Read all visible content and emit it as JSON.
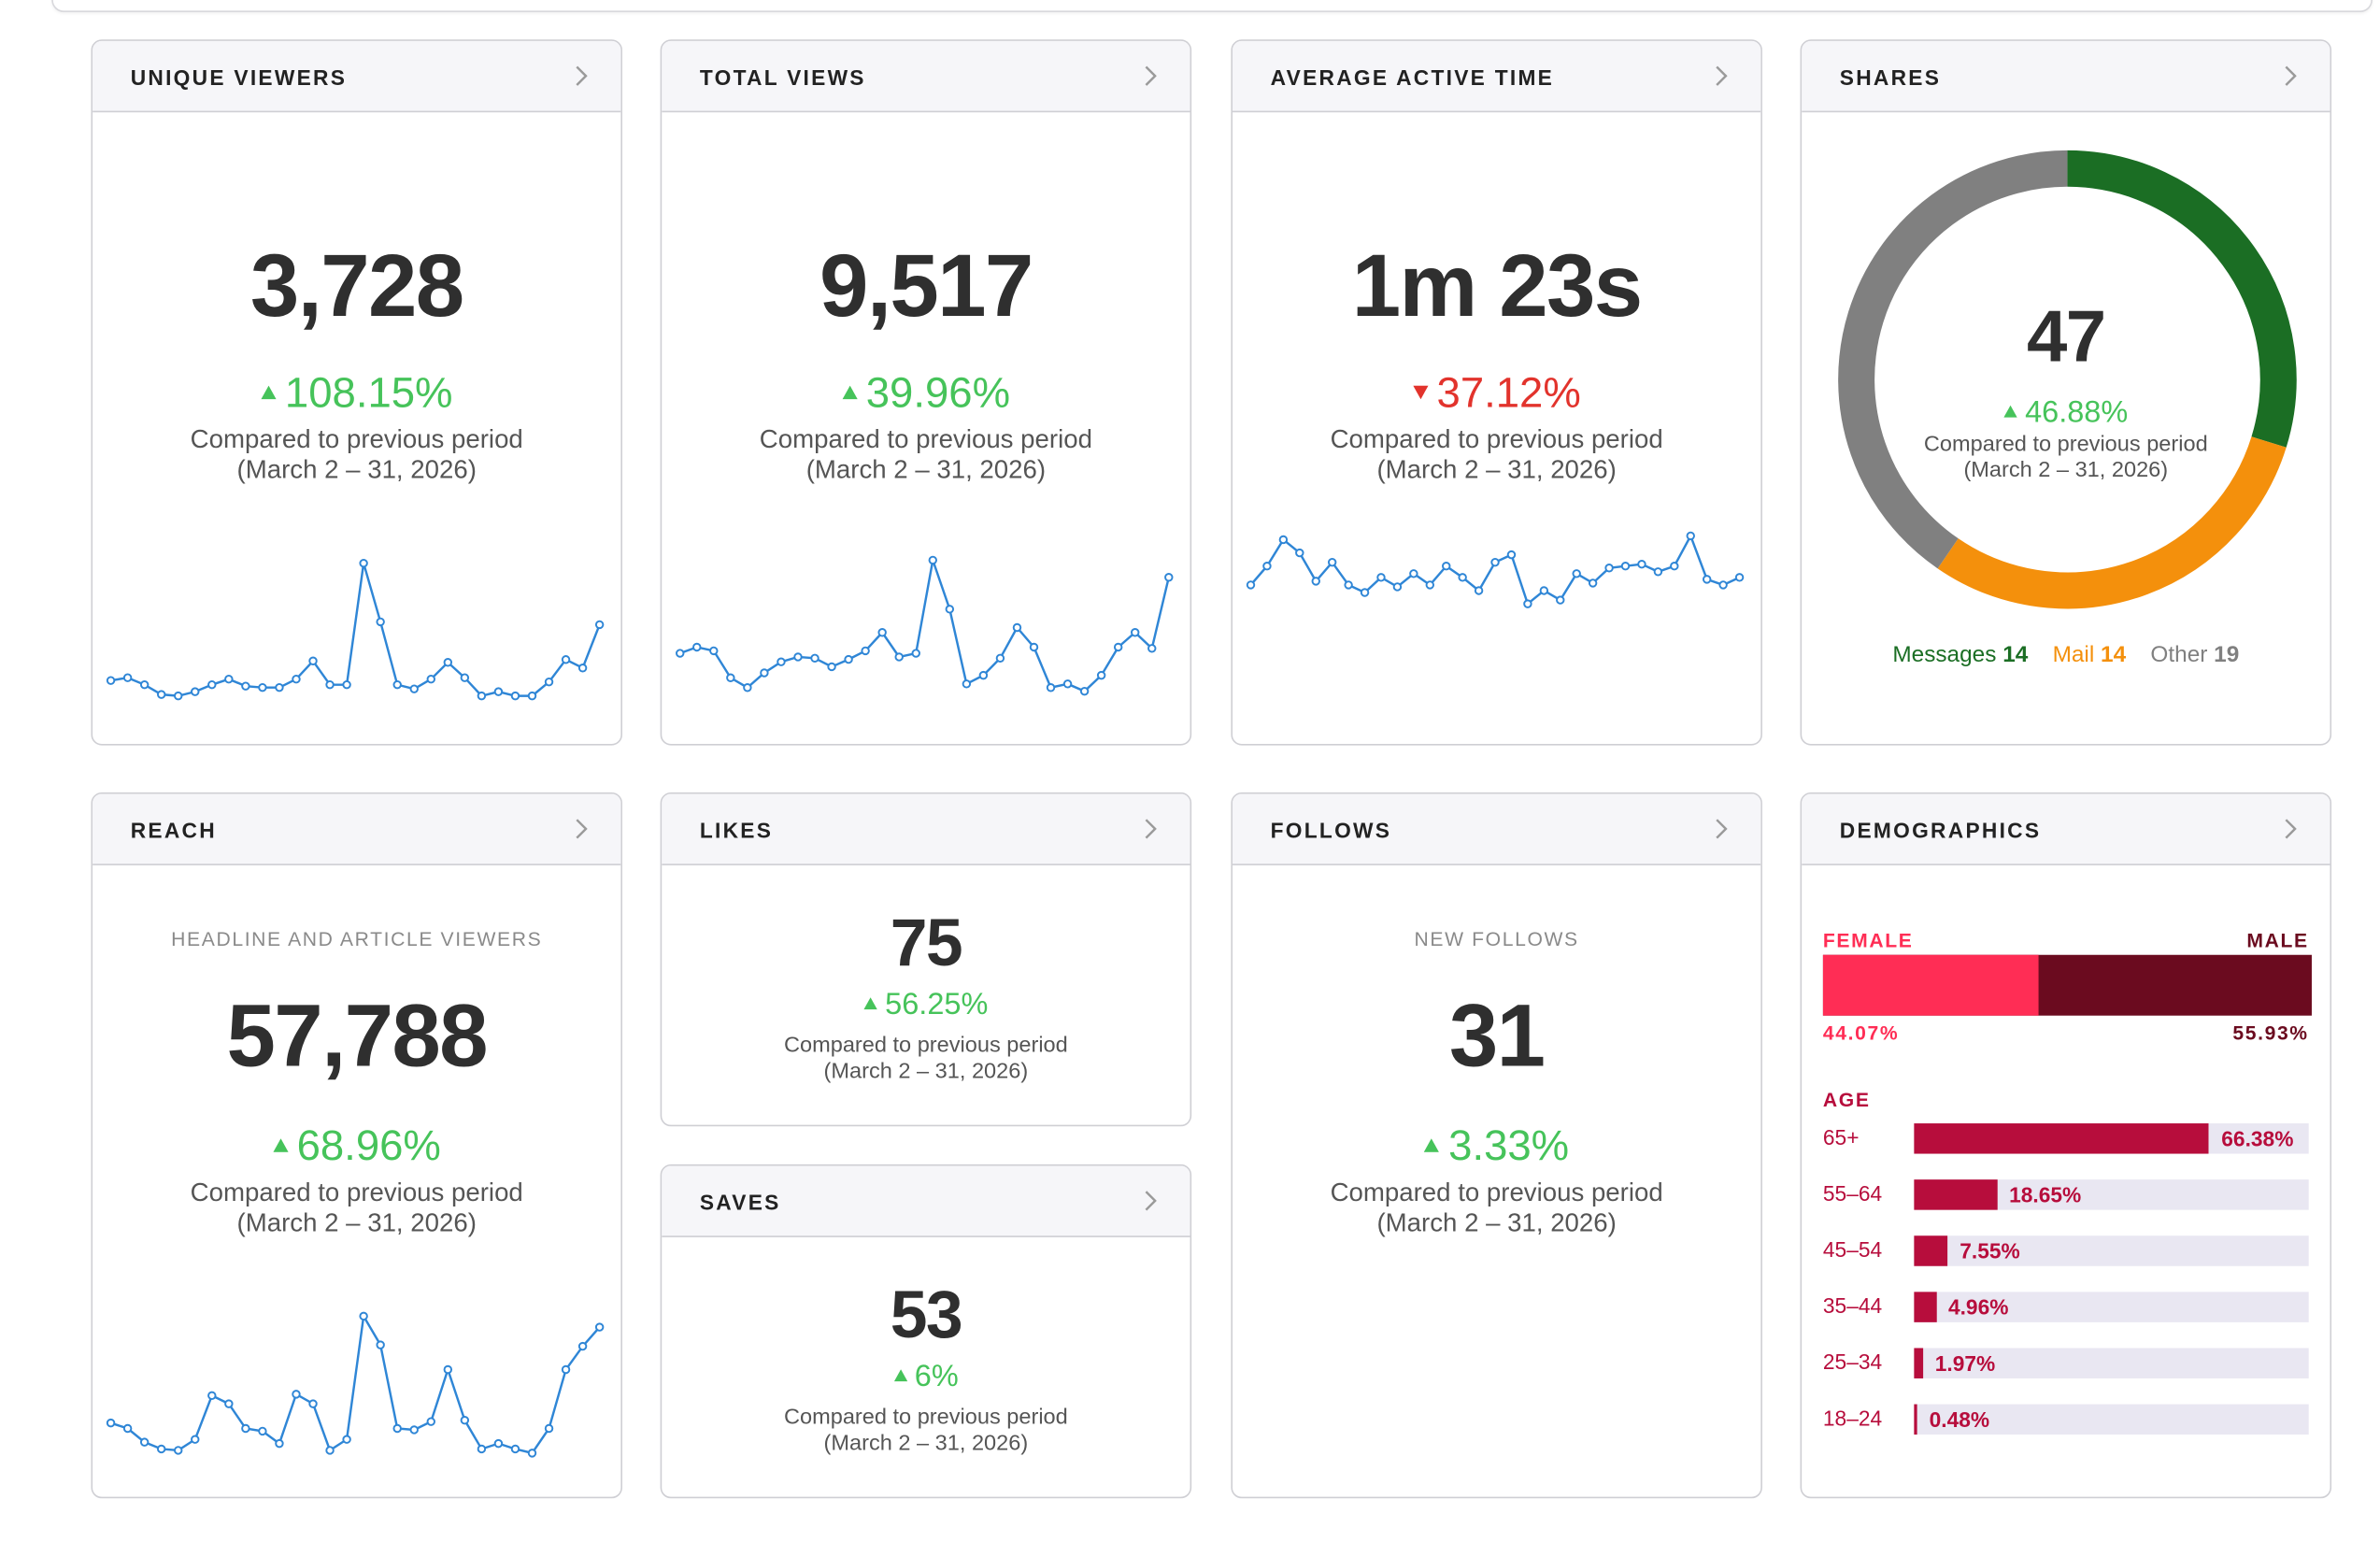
{
  "colors": {
    "up": "#46c35a",
    "down": "#e2332c",
    "spark": "#2f86d6",
    "messages": "#1b6e24",
    "mail": "#f4900c",
    "other": "#808080",
    "female": "#ff2d55",
    "male": "#6b0b1f",
    "age": "#b70d3c"
  },
  "compare_line1": "Compared to previous period",
  "compare_line2": "(March 2 – 31, 2026)",
  "cards": {
    "unique_viewers": {
      "title": "UNIQUE VIEWERS",
      "value": "3,728",
      "delta": "108.15%",
      "direction": "up",
      "spark": [
        16,
        18,
        13,
        6,
        5,
        8,
        13,
        17,
        12,
        11,
        11,
        17,
        30,
        13,
        13,
        100,
        58,
        13,
        10,
        17,
        29,
        18,
        5,
        8,
        5,
        5,
        15,
        31,
        25,
        56
      ]
    },
    "total_views": {
      "title": "TOTAL VIEWS",
      "value": "9,517",
      "delta": "39.96%",
      "direction": "up",
      "spark": [
        38,
        43,
        40,
        18,
        10,
        22,
        31,
        35,
        34,
        27,
        33,
        40,
        55,
        35,
        38,
        114,
        74,
        13,
        20,
        34,
        59,
        43,
        10,
        13,
        7,
        20,
        43,
        55,
        42,
        100
      ]
    },
    "average_active_time": {
      "title": "AVERAGE ACTIVE TIME",
      "value": "1m 23s",
      "delta": "37.12%",
      "direction": "down",
      "spark": [
        48,
        58,
        72,
        65,
        50,
        60,
        48,
        44,
        52,
        47,
        54,
        48,
        58,
        52,
        45,
        60,
        64,
        38,
        45,
        40,
        54,
        49,
        57,
        58,
        59,
        55,
        58,
        74,
        51,
        48,
        52
      ]
    },
    "shares": {
      "title": "SHARES",
      "value": "47",
      "delta": "46.88%",
      "direction": "up",
      "segments": [
        {
          "name": "Messages",
          "count": 14
        },
        {
          "name": "Mail",
          "count": 14
        },
        {
          "name": "Other",
          "count": 19
        }
      ]
    },
    "reach": {
      "title": "REACH",
      "label": "HEADLINE AND ARTICLE VIEWERS",
      "value": "57,788",
      "delta": "68.96%",
      "direction": "up",
      "spark": [
        24,
        20,
        10,
        5,
        4,
        12,
        44,
        38,
        20,
        18,
        9,
        45,
        38,
        4,
        12,
        102,
        81,
        20,
        19,
        25,
        63,
        26,
        5,
        9,
        5,
        2,
        20,
        63,
        80,
        94
      ]
    },
    "likes": {
      "title": "LIKES",
      "value": "75",
      "delta": "56.25%",
      "direction": "up"
    },
    "saves": {
      "title": "SAVES",
      "value": "53",
      "delta": "6%",
      "direction": "up"
    },
    "follows": {
      "title": "FOLLOWS",
      "label": "NEW FOLLOWS",
      "value": "31",
      "delta": "3.33%",
      "direction": "up"
    },
    "demographics": {
      "title": "DEMOGRAPHICS",
      "female_label": "FEMALE",
      "male_label": "MALE",
      "female_pct": "44.07%",
      "male_pct": "55.93%",
      "female_value": 44.07,
      "age_label": "AGE",
      "ages": [
        {
          "group": "65+",
          "pct": "66.38%",
          "value": 66.38
        },
        {
          "group": "55–64",
          "pct": "18.65%",
          "value": 18.65
        },
        {
          "group": "45–54",
          "pct": "7.55%",
          "value": 7.55
        },
        {
          "group": "35–44",
          "pct": "4.96%",
          "value": 4.96
        },
        {
          "group": "25–34",
          "pct": "1.97%",
          "value": 1.97
        },
        {
          "group": "18–24",
          "pct": "0.48%",
          "value": 0.48
        }
      ]
    }
  }
}
